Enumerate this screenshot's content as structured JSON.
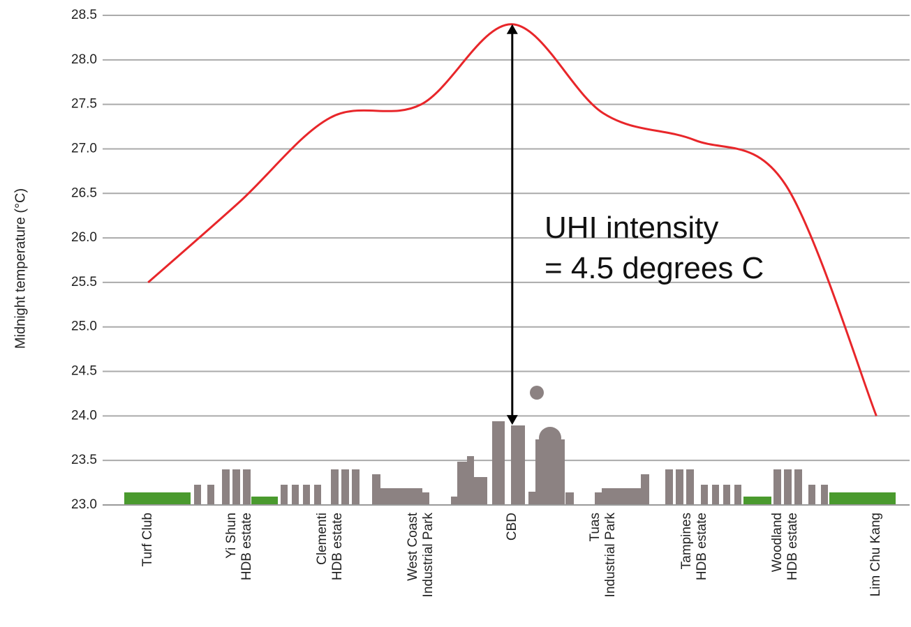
{
  "chart_data": {
    "type": "line",
    "y_label": "Midnight temperature (°C)",
    "categories": [
      "Turf Club",
      "Yi Shun\nHDB estate",
      "Clementi\nHDB estate",
      "West Coast\nIndustrial Park",
      "CBD",
      "Tuas\nIndustrial Park",
      "Tampines\nHDB estate",
      "Woodland\nHDB estate",
      "Lim Chu Kang"
    ],
    "series": [
      {
        "color": "#e8262a",
        "values": [
          25.5,
          26.4,
          27.35,
          27.5,
          28.4,
          27.4,
          27.1,
          26.6,
          24.0
        ]
      }
    ],
    "ylim": [
      23.0,
      28.5
    ],
    "yticks": [
      {
        "value": 23,
        "label": "23.0"
      },
      {
        "value": 23.5,
        "label": "23.5"
      },
      {
        "value": 24,
        "label": "24.0"
      },
      {
        "value": 24.5,
        "label": "24.5"
      },
      {
        "value": 25,
        "label": "25.0"
      },
      {
        "value": 25.5,
        "label": "25.5"
      },
      {
        "value": 26,
        "label": "26.0"
      },
      {
        "value": 26.5,
        "label": "26.5"
      },
      {
        "value": 27,
        "label": "27.0"
      },
      {
        "value": 27.5,
        "label": "27.5"
      },
      {
        "value": 28,
        "label": "28.0"
      },
      {
        "value": 28.5,
        "label": "28.5"
      }
    ],
    "grid": true,
    "annotation": {
      "text": "UHI intensity\n= 4.5 degrees C",
      "arrow_from": 23.9,
      "arrow_to": 28.4
    }
  }
}
